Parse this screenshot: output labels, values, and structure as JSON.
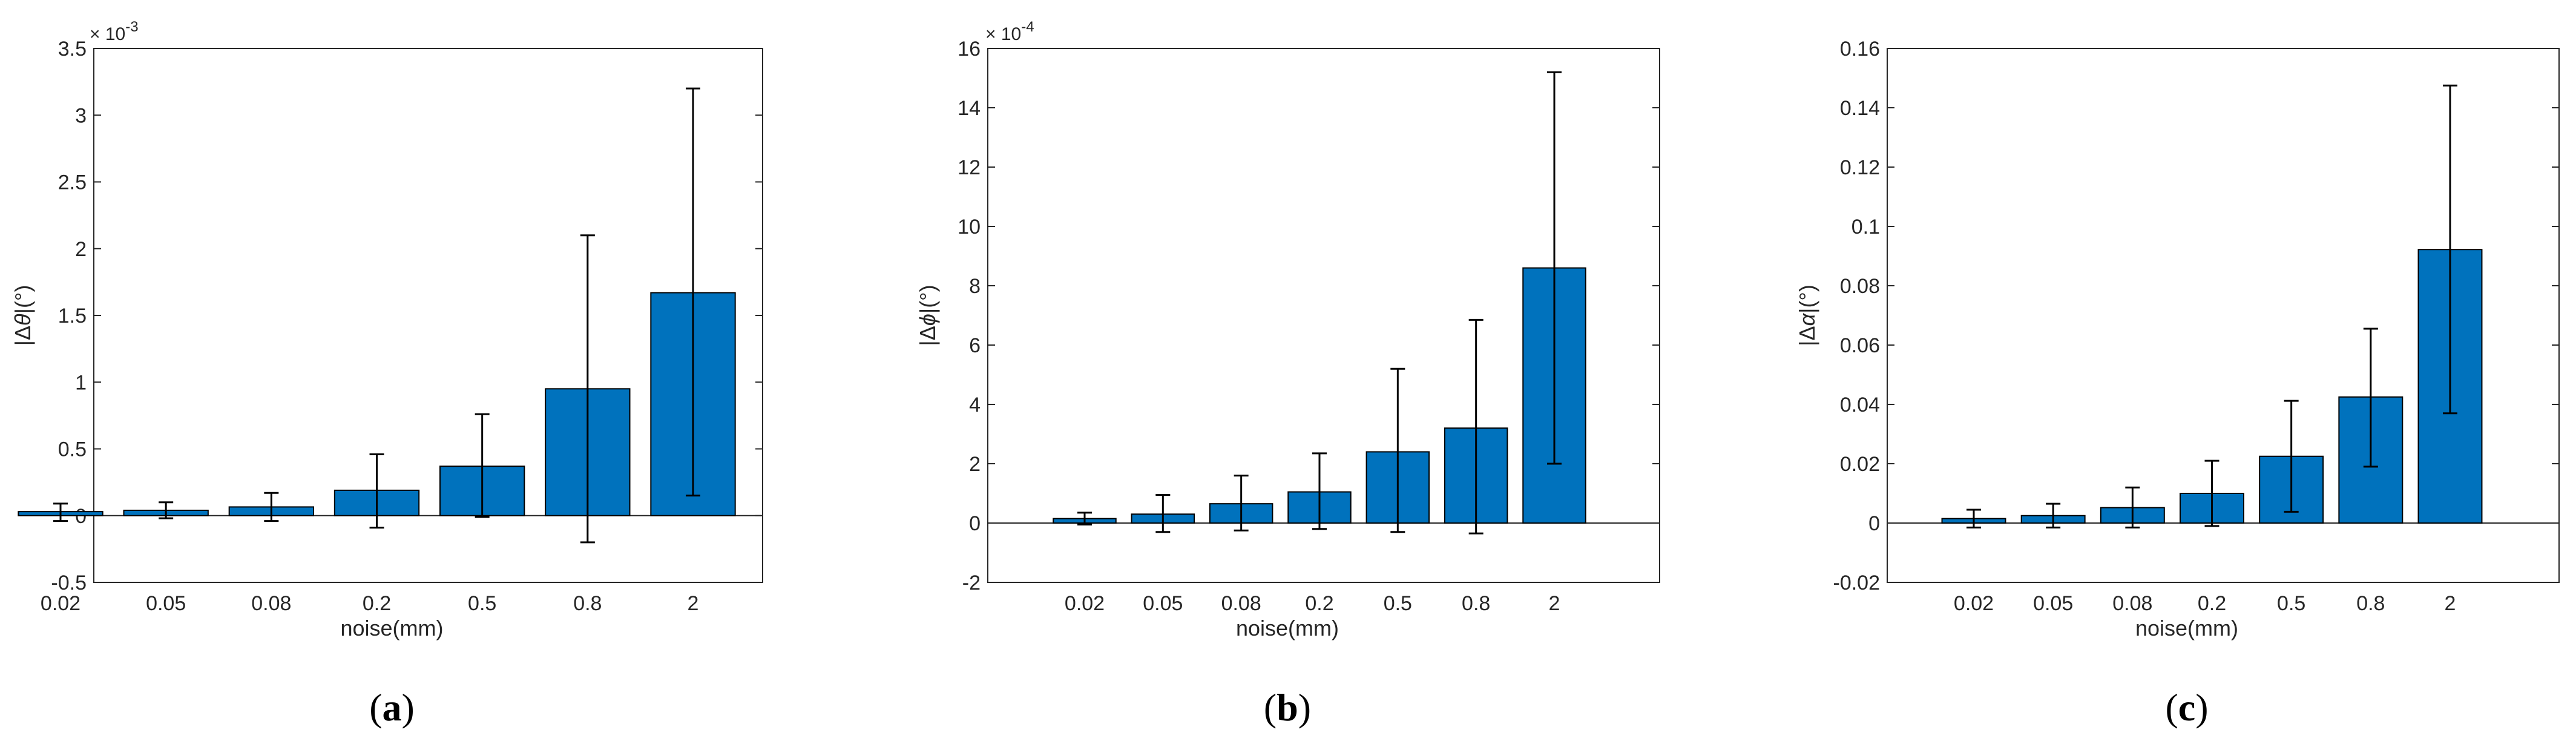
{
  "chart_data": [
    {
      "type": "bar",
      "panel_label": "a",
      "xlabel": "noise(mm)",
      "ylabel_prefix": "|Δ",
      "ylabel_symbol": "θ",
      "ylabel_suffix": "|(°)",
      "exponent_base": "× 10",
      "exponent_power": "-3",
      "categories": [
        "0.02",
        "0.05",
        "0.08",
        "0.2",
        "0.5",
        "0.8",
        "2"
      ],
      "values": [
        0.03,
        0.04,
        0.065,
        0.19,
        0.37,
        0.95,
        1.67
      ],
      "error_low": [
        -0.04,
        -0.02,
        -0.04,
        -0.09,
        -0.01,
        -0.2,
        0.15
      ],
      "error_high": [
        0.09,
        0.1,
        0.17,
        0.46,
        0.76,
        2.1,
        3.2
      ],
      "ylim": [
        -0.5,
        3.5
      ],
      "yticks": [
        -0.5,
        0,
        0.5,
        1,
        1.5,
        2,
        2.5,
        3,
        3.5
      ],
      "ytick_labels": [
        "-0.5",
        "0",
        "0.5",
        "1",
        "1.5",
        "2",
        "2.5",
        "3",
        "3.5"
      ],
      "bar_color": "#0072BD"
    },
    {
      "type": "bar",
      "panel_label": "b",
      "xlabel": "noise(mm)",
      "ylabel_prefix": "|Δ",
      "ylabel_symbol": "ϕ",
      "ylabel_suffix": "|(°)",
      "exponent_base": "× 10",
      "exponent_power": "-4",
      "categories": [
        "0.02",
        "0.05",
        "0.08",
        "0.2",
        "0.5",
        "0.8",
        "2"
      ],
      "values": [
        0.15,
        0.3,
        0.65,
        1.05,
        2.4,
        3.2,
        8.6
      ],
      "error_low": [
        -0.05,
        -0.3,
        -0.25,
        -0.2,
        -0.3,
        -0.35,
        2.0
      ],
      "error_high": [
        0.35,
        0.95,
        1.6,
        2.35,
        5.2,
        6.85,
        15.2
      ],
      "ylim": [
        -2,
        16
      ],
      "yticks": [
        -2,
        0,
        2,
        4,
        6,
        8,
        10,
        12,
        14,
        16
      ],
      "ytick_labels": [
        "-2",
        "0",
        "2",
        "4",
        "6",
        "8",
        "10",
        "12",
        "14",
        "16"
      ],
      "bar_color": "#0072BD"
    },
    {
      "type": "bar",
      "panel_label": "c",
      "xlabel": "noise(mm)",
      "ylabel_prefix": "|Δ",
      "ylabel_symbol": "α",
      "ylabel_suffix": "|(°)",
      "exponent_base": "",
      "exponent_power": "",
      "categories": [
        "0.02",
        "0.05",
        "0.08",
        "0.2",
        "0.5",
        "0.8",
        "2"
      ],
      "values": [
        0.0015,
        0.0025,
        0.0052,
        0.01,
        0.0225,
        0.0425,
        0.0922
      ],
      "error_low": [
        -0.0015,
        -0.0015,
        -0.0015,
        -0.001,
        0.0038,
        0.019,
        0.037
      ],
      "error_high": [
        0.0045,
        0.0065,
        0.012,
        0.021,
        0.0412,
        0.0655,
        0.1475
      ],
      "ylim": [
        -0.02,
        0.16
      ],
      "yticks": [
        -0.02,
        0,
        0.02,
        0.04,
        0.06,
        0.08,
        0.1,
        0.12,
        0.14,
        0.16
      ],
      "ytick_labels": [
        "-0.02",
        "0",
        "0.02",
        "0.04",
        "0.06",
        "0.08",
        "0.1",
        "0.12",
        "0.14",
        "0.16"
      ],
      "bar_color": "#0072BD"
    }
  ]
}
